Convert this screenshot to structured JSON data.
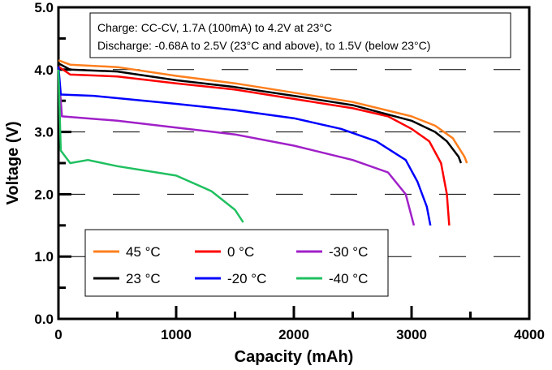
{
  "chart_data": {
    "type": "line",
    "xlabel": "Capacity (mAh)",
    "ylabel": "Voltage (V)",
    "xlim": [
      0,
      4000
    ],
    "ylim": [
      0,
      5
    ],
    "xticks": [
      "0",
      "1000",
      "2000",
      "3000",
      "4000"
    ],
    "yticks": [
      "0.0",
      "1.0",
      "2.0",
      "3.0",
      "4.0",
      "5.0"
    ],
    "grid": "dashed horizontal",
    "annotation": [
      "Charge: CC-CV, 1.7A (100mA) to 4.2V at 23°C",
      "Discharge: -0.68A to 2.5V (23°C and above), to 1.5V (below 23°C)"
    ],
    "legend_placement": "bottom-left",
    "series": [
      {
        "name": "45 °C",
        "color": "#ff7f1e",
        "x": [
          0,
          100,
          500,
          1000,
          1500,
          2000,
          2500,
          3000,
          3200,
          3350,
          3450,
          3470
        ],
        "y": [
          4.15,
          4.08,
          4.04,
          3.9,
          3.78,
          3.63,
          3.48,
          3.25,
          3.1,
          2.9,
          2.6,
          2.5
        ]
      },
      {
        "name": "0 °C",
        "color": "#ff0000",
        "x": [
          0,
          100,
          500,
          1000,
          1500,
          2000,
          2500,
          2800,
          3000,
          3150,
          3250,
          3300,
          3320
        ],
        "y": [
          4.05,
          3.92,
          3.89,
          3.78,
          3.68,
          3.53,
          3.38,
          3.25,
          3.05,
          2.85,
          2.5,
          2.0,
          1.5
        ]
      },
      {
        "name": "-30 °C",
        "color": "#a020c8",
        "x": [
          0,
          30,
          500,
          1000,
          1500,
          2000,
          2500,
          2800,
          2950,
          3020
        ],
        "y": [
          4.0,
          3.25,
          3.18,
          3.07,
          2.96,
          2.78,
          2.55,
          2.35,
          2.0,
          1.5
        ]
      },
      {
        "name": "23 °C",
        "color": "#000000",
        "x": [
          0,
          100,
          500,
          1000,
          1500,
          2000,
          2500,
          3000,
          3200,
          3300,
          3400,
          3420
        ],
        "y": [
          4.1,
          4.0,
          3.97,
          3.83,
          3.72,
          3.58,
          3.43,
          3.18,
          3.0,
          2.85,
          2.6,
          2.5
        ]
      },
      {
        "name": "-20 °C",
        "color": "#0000ff",
        "x": [
          0,
          20,
          300,
          1000,
          1500,
          2000,
          2400,
          2700,
          2950,
          3050,
          3130,
          3160
        ],
        "y": [
          4.05,
          3.6,
          3.58,
          3.45,
          3.35,
          3.22,
          3.05,
          2.85,
          2.55,
          2.2,
          1.8,
          1.5
        ]
      },
      {
        "name": "-40 °C",
        "color": "#20c060",
        "x": [
          0,
          20,
          100,
          250,
          500,
          1000,
          1300,
          1500,
          1570
        ],
        "y": [
          4.0,
          2.7,
          2.5,
          2.55,
          2.45,
          2.3,
          2.05,
          1.75,
          1.55
        ]
      }
    ]
  }
}
